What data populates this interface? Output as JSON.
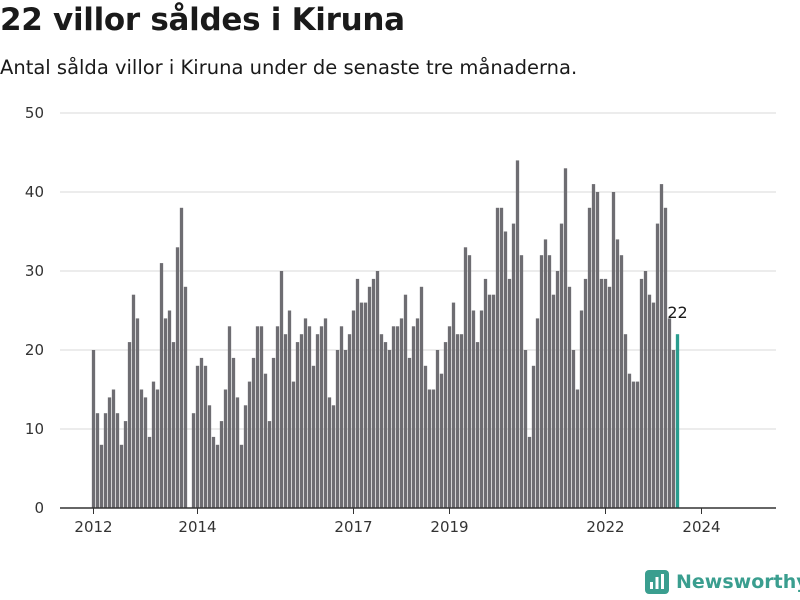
{
  "header": {
    "title": "22 villor såldes i Kiruna",
    "subtitle": "Antal sålda villor i Kiruna under de senaste tre månaderna."
  },
  "brand": {
    "name": "Newsworthy",
    "color": "#3a9e8f"
  },
  "colors": {
    "bar": "#6e6d72",
    "highlight": "#2a9d8f",
    "grid": "#d9d9d9",
    "axis": "#333333"
  },
  "chart_data": {
    "type": "bar",
    "title": "22 villor såldes i Kiruna",
    "subtitle": "Antal sålda villor i Kiruna under de senaste tre månaderna.",
    "xlabel": "",
    "ylabel": "",
    "ylim": [
      0,
      50
    ],
    "y_ticks": [
      0,
      10,
      20,
      30,
      40,
      50
    ],
    "x_tick_labels": [
      {
        "label": "2012",
        "index": 0
      },
      {
        "label": "2014",
        "index": 26
      },
      {
        "label": "2017",
        "index": 65
      },
      {
        "label": "2019",
        "index": 89
      },
      {
        "label": "2022",
        "index": 128
      },
      {
        "label": "2024",
        "index": 152
      }
    ],
    "highlight_label": "22",
    "grid": true,
    "values": [
      20,
      12,
      8,
      12,
      14,
      15,
      12,
      8,
      11,
      21,
      27,
      24,
      15,
      14,
      9,
      16,
      15,
      31,
      24,
      25,
      21,
      33,
      38,
      28,
      null,
      12,
      18,
      19,
      18,
      13,
      9,
      8,
      11,
      15,
      23,
      19,
      14,
      8,
      13,
      16,
      19,
      23,
      23,
      17,
      11,
      19,
      23,
      30,
      22,
      25,
      16,
      21,
      22,
      24,
      23,
      18,
      22,
      23,
      24,
      14,
      13,
      20,
      23,
      20,
      22,
      25,
      29,
      26,
      26,
      28,
      29,
      30,
      22,
      21,
      20,
      23,
      23,
      24,
      27,
      19,
      23,
      24,
      28,
      18,
      15,
      15,
      20,
      17,
      21,
      23,
      26,
      22,
      22,
      33,
      32,
      25,
      21,
      25,
      29,
      27,
      27,
      38,
      38,
      35,
      29,
      36,
      44,
      32,
      20,
      9,
      18,
      24,
      32,
      34,
      32,
      27,
      30,
      36,
      43,
      28,
      20,
      15,
      25,
      29,
      38,
      41,
      40,
      29,
      29,
      28,
      40,
      34,
      32,
      22,
      17,
      16,
      16,
      29,
      30,
      27,
      26,
      36,
      41,
      38,
      24,
      20,
      22
    ]
  }
}
